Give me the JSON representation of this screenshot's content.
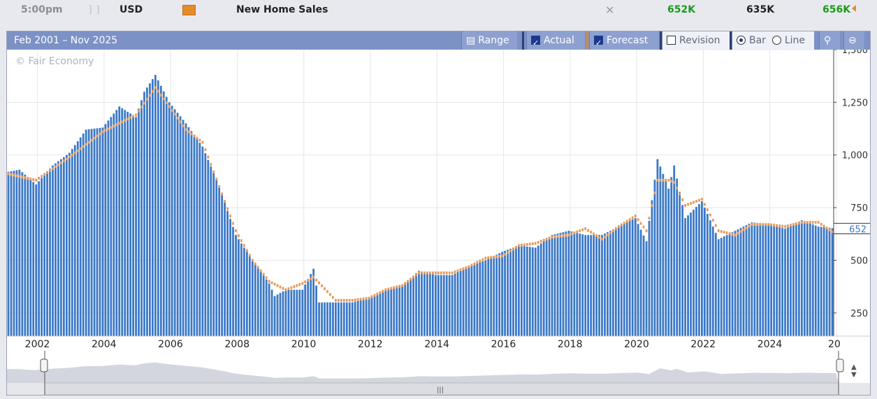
{
  "top_row": {
    "time": "5:00pm",
    "currency": "USD",
    "event": "New Home Sales",
    "actual": "652K",
    "forecast": "635K",
    "previous": "656K",
    "impact_icon": "signal-icon",
    "folder_icon": "folder-icon",
    "close_icon": "close-icon"
  },
  "toolbar": {
    "range_label": "Feb 2001 – Nov 2025",
    "range_button": "Range",
    "actual_label": "Actual",
    "forecast_label": "Forecast",
    "revision_label": "Revision",
    "bar_label": "Bar",
    "line_label": "Line"
  },
  "watermark": "© Fair Economy",
  "current_value_label": "652",
  "colors": {
    "actual_bar": "#3a78c7",
    "forecast_marker": "#e59a5a",
    "toolbar": "#7c91c6"
  },
  "chart_data": {
    "type": "bar",
    "title": "",
    "xlabel": "",
    "ylabel": "",
    "ylim": [
      140,
      1500
    ],
    "yticks": [
      "250",
      "500",
      "750",
      "1,000",
      "1,250",
      "1,500"
    ],
    "xticks": [
      "2002",
      "2004",
      "2006",
      "2008",
      "2010",
      "2012",
      "2014",
      "2016",
      "2018",
      "2020",
      "2022",
      "2024",
      "20"
    ],
    "grid": true,
    "series": [
      {
        "name": "Actual",
        "start": "2001-02",
        "end": "2025-11",
        "frequency": "monthly",
        "keypoints": [
          [
            "2001-02",
            920
          ],
          [
            "2001-06",
            930
          ],
          [
            "2001-12",
            860
          ],
          [
            "2002-06",
            950
          ],
          [
            "2002-12",
            1010
          ],
          [
            "2003-06",
            1120
          ],
          [
            "2003-12",
            1130
          ],
          [
            "2004-06",
            1230
          ],
          [
            "2004-12",
            1180
          ],
          [
            "2005-03",
            1300
          ],
          [
            "2005-07",
            1380
          ],
          [
            "2005-12",
            1250
          ],
          [
            "2006-06",
            1150
          ],
          [
            "2006-12",
            1040
          ],
          [
            "2007-06",
            850
          ],
          [
            "2007-12",
            620
          ],
          [
            "2008-06",
            500
          ],
          [
            "2008-12",
            390
          ],
          [
            "2009-02",
            330
          ],
          [
            "2009-06",
            360
          ],
          [
            "2009-12",
            360
          ],
          [
            "2010-04",
            460
          ],
          [
            "2010-06",
            300
          ],
          [
            "2010-12",
            300
          ],
          [
            "2011-06",
            300
          ],
          [
            "2011-12",
            320
          ],
          [
            "2012-06",
            360
          ],
          [
            "2012-12",
            380
          ],
          [
            "2013-06",
            450
          ],
          [
            "2013-12",
            430
          ],
          [
            "2014-06",
            430
          ],
          [
            "2014-12",
            470
          ],
          [
            "2015-06",
            500
          ],
          [
            "2015-12",
            540
          ],
          [
            "2016-06",
            570
          ],
          [
            "2016-12",
            560
          ],
          [
            "2017-06",
            620
          ],
          [
            "2017-12",
            640
          ],
          [
            "2018-06",
            620
          ],
          [
            "2018-12",
            620
          ],
          [
            "2019-06",
            660
          ],
          [
            "2019-12",
            700
          ],
          [
            "2020-04",
            590
          ],
          [
            "2020-08",
            980
          ],
          [
            "2020-12",
            840
          ],
          [
            "2021-02",
            950
          ],
          [
            "2021-06",
            700
          ],
          [
            "2021-12",
            780
          ],
          [
            "2022-06",
            600
          ],
          [
            "2022-12",
            640
          ],
          [
            "2023-06",
            680
          ],
          [
            "2023-12",
            670
          ],
          [
            "2024-06",
            650
          ],
          [
            "2024-12",
            690
          ],
          [
            "2025-06",
            660
          ],
          [
            "2025-11",
            652
          ]
        ]
      },
      {
        "name": "Forecast",
        "start": "2001-02",
        "end": "2025-11",
        "frequency": "monthly",
        "keypoints": [
          [
            "2001-02",
            910
          ],
          [
            "2001-12",
            880
          ],
          [
            "2002-12",
            990
          ],
          [
            "2003-12",
            1110
          ],
          [
            "2004-12",
            1190
          ],
          [
            "2005-07",
            1320
          ],
          [
            "2005-12",
            1230
          ],
          [
            "2006-06",
            1120
          ],
          [
            "2006-12",
            1060
          ],
          [
            "2007-06",
            850
          ],
          [
            "2007-12",
            640
          ],
          [
            "2008-06",
            500
          ],
          [
            "2008-12",
            400
          ],
          [
            "2009-06",
            360
          ],
          [
            "2009-12",
            390
          ],
          [
            "2010-04",
            420
          ],
          [
            "2010-12",
            310
          ],
          [
            "2011-06",
            310
          ],
          [
            "2011-12",
            320
          ],
          [
            "2012-06",
            360
          ],
          [
            "2012-12",
            380
          ],
          [
            "2013-06",
            440
          ],
          [
            "2013-12",
            440
          ],
          [
            "2014-06",
            440
          ],
          [
            "2014-12",
            470
          ],
          [
            "2015-06",
            510
          ],
          [
            "2015-12",
            520
          ],
          [
            "2016-06",
            570
          ],
          [
            "2016-12",
            580
          ],
          [
            "2017-06",
            610
          ],
          [
            "2017-12",
            620
          ],
          [
            "2018-06",
            650
          ],
          [
            "2018-12",
            600
          ],
          [
            "2019-06",
            660
          ],
          [
            "2019-12",
            710
          ],
          [
            "2020-04",
            640
          ],
          [
            "2020-08",
            880
          ],
          [
            "2020-12",
            880
          ],
          [
            "2021-02",
            870
          ],
          [
            "2021-06",
            760
          ],
          [
            "2021-12",
            790
          ],
          [
            "2022-06",
            640
          ],
          [
            "2022-12",
            620
          ],
          [
            "2023-06",
            670
          ],
          [
            "2023-12",
            670
          ],
          [
            "2024-06",
            660
          ],
          [
            "2024-12",
            680
          ],
          [
            "2025-06",
            680
          ],
          [
            "2025-11",
            635
          ]
        ]
      }
    ]
  }
}
